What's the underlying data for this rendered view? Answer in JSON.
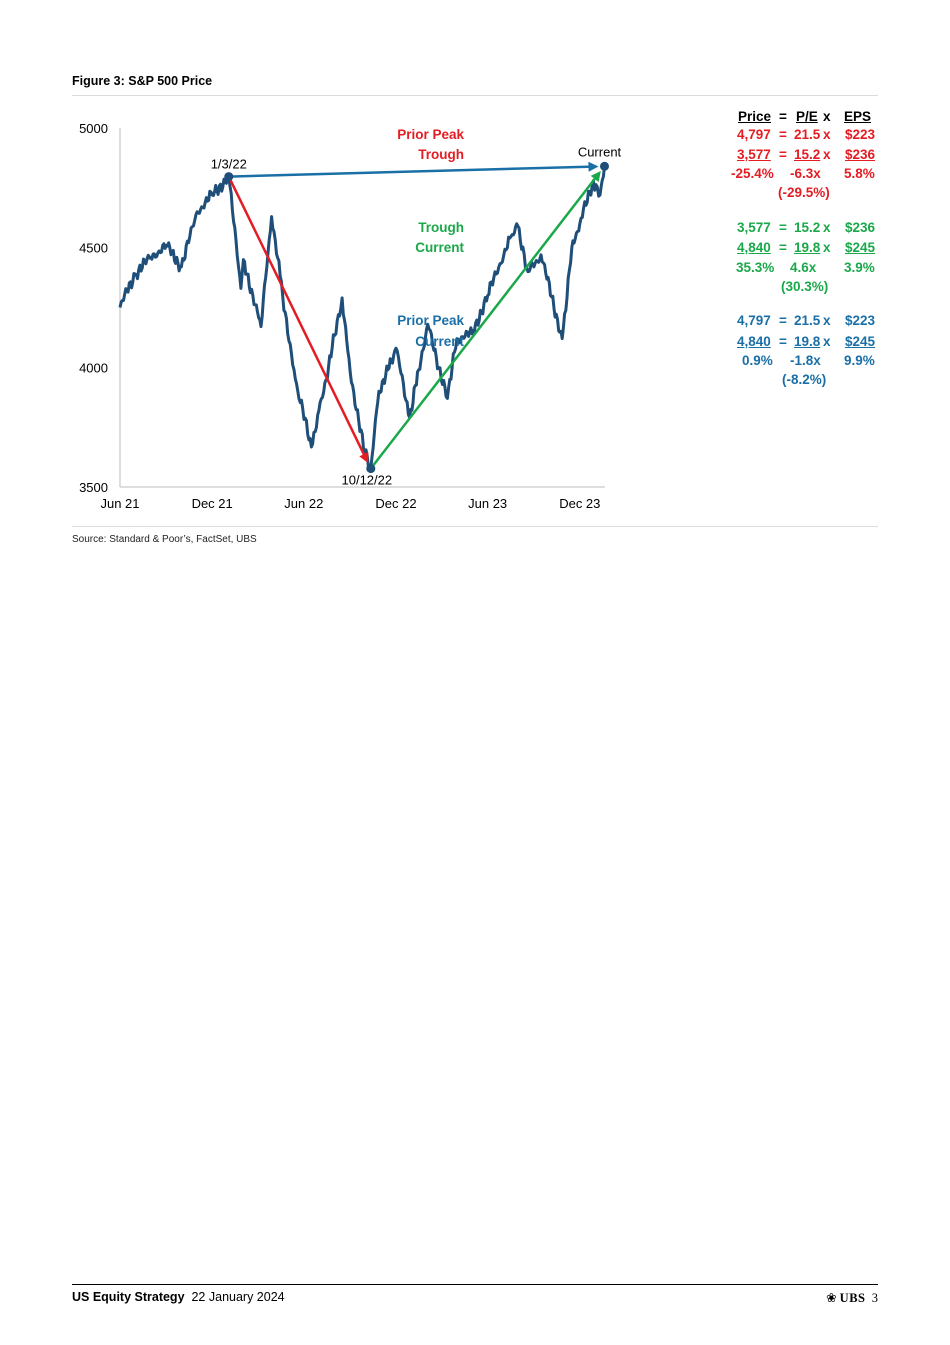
{
  "figure": {
    "title": "Figure 3: S&P 500 Price",
    "source": "Source: Standard & Poor’s, FactSet, UBS"
  },
  "chart_data": {
    "type": "line",
    "title": "",
    "xlabel": "",
    "ylabel": "",
    "ylim": [
      3500,
      5000
    ],
    "yticks": [
      "5000",
      "4500",
      "4000",
      "3500"
    ],
    "xticks": [
      "Jun 21",
      "Dec 21",
      "Jun 22",
      "Dec 22",
      "Jun 23",
      "Dec 23"
    ],
    "x_range": [
      "2021-06",
      "2024-01"
    ],
    "grid": false,
    "colors": {
      "series": "#1f4e79",
      "decline": "#e41c23",
      "rally": "#1aa84a",
      "peak_to_current": "#1a6fa6"
    },
    "annotations": [
      {
        "label": "1/3/22",
        "date": "2022-01-03",
        "value": 4797
      },
      {
        "label": "10/12/22",
        "date": "2022-10-12",
        "value": 3577
      },
      {
        "label": "Current",
        "date": "2024-01-19",
        "value": 4840
      }
    ],
    "series": [
      {
        "name": "",
        "x": [
          "2021-06",
          "2021-07",
          "2021-08",
          "2021-09",
          "2021-10",
          "2021-11",
          "2021-12",
          "2022-01-03",
          "2022-01-27",
          "2022-02",
          "2022-03-08",
          "2022-03-29",
          "2022-04-15",
          "2022-05-10",
          "2022-05-20",
          "2022-06-16",
          "2022-07-01",
          "2022-07-20",
          "2022-08-16",
          "2022-09-01",
          "2022-09-30",
          "2022-10-12",
          "2022-10-28",
          "2022-11-15",
          "2022-12-01",
          "2022-12-28",
          "2023-01-15",
          "2023-02-02",
          "2023-03-13",
          "2023-04-01",
          "2023-05-01",
          "2023-06-01",
          "2023-07-15",
          "2023-07-31",
          "2023-08-20",
          "2023-09-15",
          "2023-10-27",
          "2023-11-15",
          "2023-12-01",
          "2023-12-28",
          "2024-01-10",
          "2024-01-19"
        ],
        "values": [
          4250,
          4390,
          4460,
          4510,
          4420,
          4650,
          4720,
          4797,
          4330,
          4450,
          4170,
          4630,
          4380,
          4010,
          3900,
          3667,
          3820,
          4000,
          4290,
          3980,
          3640,
          3577,
          3900,
          3990,
          4080,
          3790,
          3990,
          4180,
          3870,
          4120,
          4140,
          4300,
          4540,
          4590,
          4400,
          4470,
          4120,
          4500,
          4600,
          4780,
          4720,
          4840
        ]
      }
    ]
  },
  "calc": {
    "header": {
      "price": "Price",
      "eq": "=",
      "pe": "P/E",
      "x": "x",
      "eps": "EPS"
    },
    "block1": {
      "r1": {
        "label": "Prior Peak",
        "price": "4,797",
        "eq": "=",
        "pe": "21.5",
        "x": "x",
        "eps": "$223"
      },
      "r2": {
        "label": "Trough",
        "price": "3,577",
        "eq": "=",
        "pe": "15.2",
        "x": "x",
        "eps": "$236"
      },
      "r3": {
        "price": "-25.4%",
        "pe": "-6.3x",
        "eps": "5.8%"
      },
      "r4": {
        "pe": "(-29.5%)"
      }
    },
    "block2": {
      "r1": {
        "label": "Trough",
        "price": "3,577",
        "eq": "=",
        "pe": "15.2",
        "x": "x",
        "eps": "$236"
      },
      "r2": {
        "label": "Current",
        "price": "4,840",
        "eq": "=",
        "pe": "19.8",
        "x": "x",
        "eps": "$245"
      },
      "r3": {
        "price": "35.3%",
        "pe": "4.6x",
        "eps": "3.9%"
      },
      "r4": {
        "pe": "(30.3%)"
      }
    },
    "block3": {
      "r1": {
        "label": "Prior Peak",
        "price": "4,797",
        "eq": "=",
        "pe": "21.5",
        "x": "x",
        "eps": "$223"
      },
      "r2": {
        "label": "Current",
        "price": "4,840",
        "eq": "=",
        "pe": "19.8",
        "x": "x",
        "eps": "$245"
      },
      "r3": {
        "price": "0.9%",
        "pe": "-1.8x",
        "eps": "9.9%"
      },
      "r4": {
        "pe": "(-8.2%)"
      }
    }
  },
  "footer": {
    "publication": "US Equity Strategy",
    "date": "22 January 2024",
    "logo": "UBS",
    "page": "3"
  }
}
